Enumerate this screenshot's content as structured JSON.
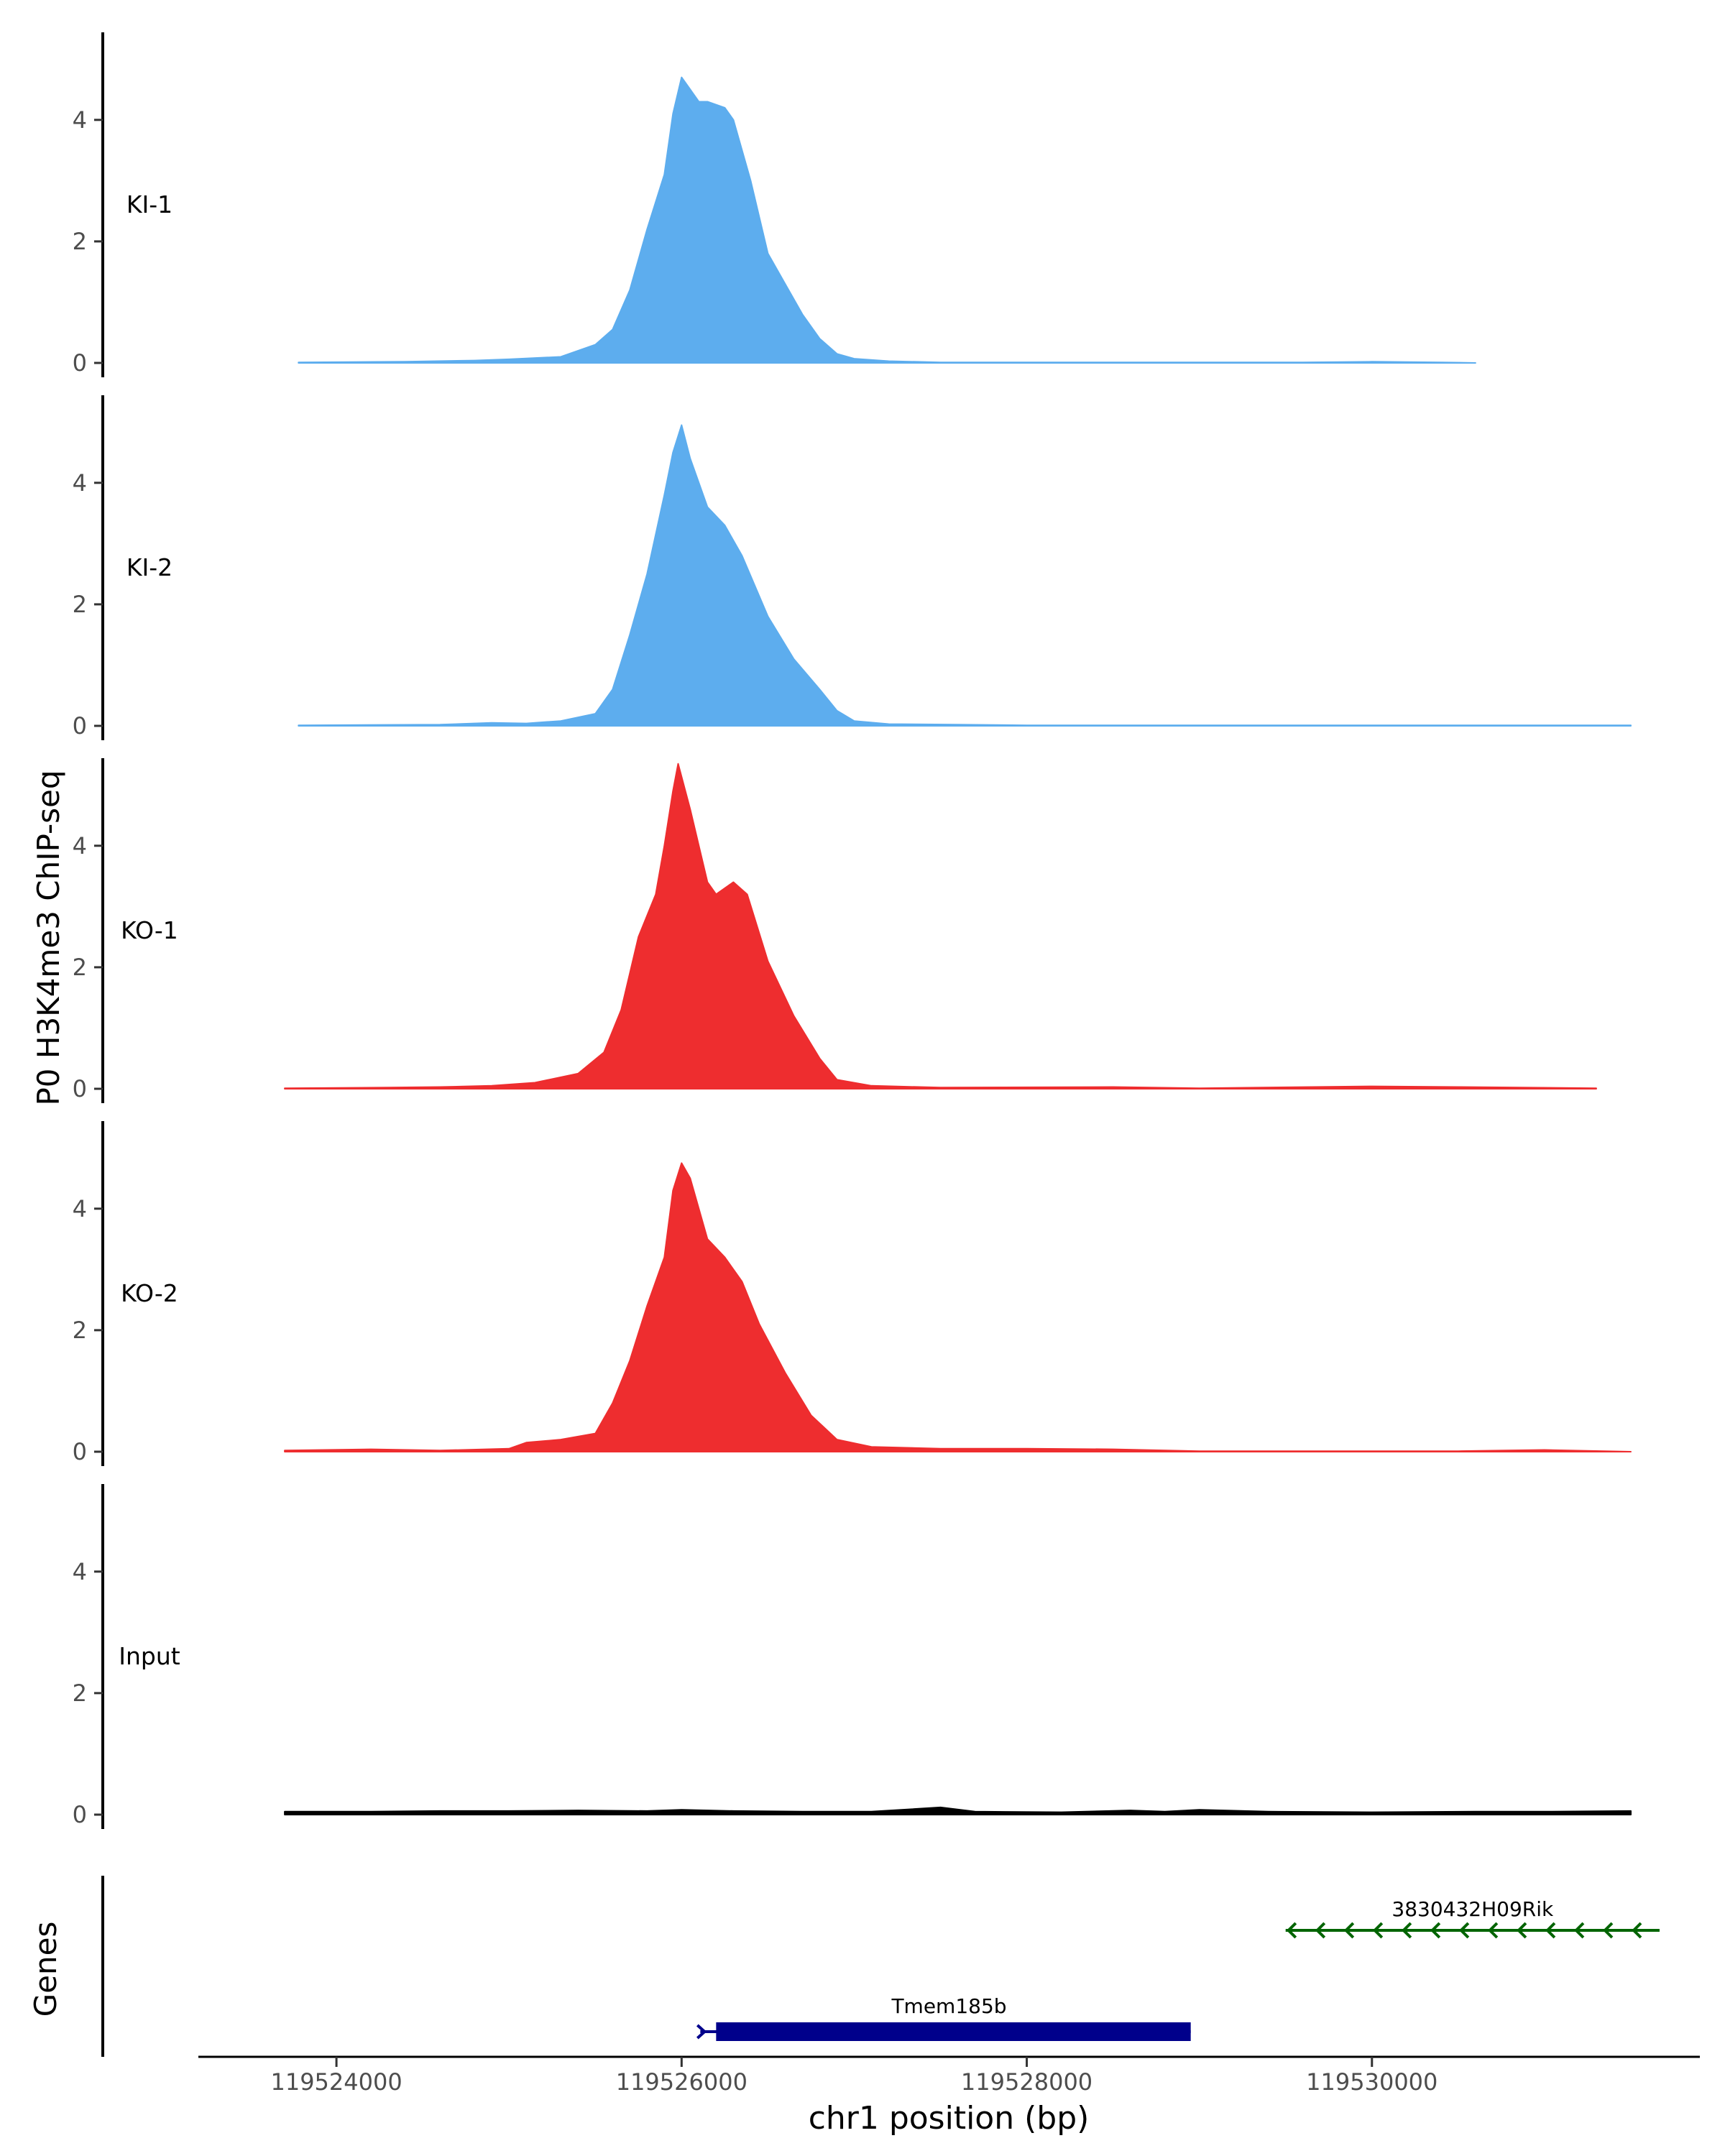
{
  "chart_data": {
    "type": "area",
    "title": "",
    "ylabel": "P0 H3K4me3 ChIP-seq",
    "xlabel": "chr1 position (bp)",
    "xlim": [
      119523200,
      119531900
    ],
    "ylim": [
      0,
      5.5
    ],
    "x_ticks": [
      119524000,
      119526000,
      119528000,
      119530000
    ],
    "x_tick_labels": [
      "119524000",
      "119526000",
      "119528000",
      "119530000"
    ],
    "y_ticks": [
      0,
      2,
      4
    ],
    "y_tick_labels": [
      "0",
      "2",
      "4"
    ],
    "colors": {
      "KI": "#5DADEE",
      "KO": "#EE2D2F",
      "Input": "#000000",
      "gene_plus": "#00008B",
      "gene_minus": "#006400",
      "axis": "#000000",
      "tick_text": "#4D4D4D"
    },
    "series": [
      {
        "name": "KI-1",
        "color": "#5DADEE",
        "points": [
          [
            119523780,
            0.01
          ],
          [
            119524400,
            0.02
          ],
          [
            119524800,
            0.04
          ],
          [
            119525000,
            0.06
          ],
          [
            119525300,
            0.1
          ],
          [
            119525500,
            0.3
          ],
          [
            119525600,
            0.55
          ],
          [
            119525700,
            1.2
          ],
          [
            119525800,
            2.2
          ],
          [
            119525900,
            3.1
          ],
          [
            119525950,
            4.1
          ],
          [
            119526000,
            4.7
          ],
          [
            119526050,
            4.5
          ],
          [
            119526100,
            4.3
          ],
          [
            119526150,
            4.3
          ],
          [
            119526250,
            4.2
          ],
          [
            119526300,
            4.0
          ],
          [
            119526400,
            3.0
          ],
          [
            119526500,
            1.8
          ],
          [
            119526600,
            1.3
          ],
          [
            119526700,
            0.8
          ],
          [
            119526800,
            0.4
          ],
          [
            119526900,
            0.15
          ],
          [
            119527000,
            0.07
          ],
          [
            119527200,
            0.03
          ],
          [
            119527500,
            0.01
          ],
          [
            119529600,
            0.01
          ],
          [
            119530000,
            0.02
          ],
          [
            119530400,
            0.01
          ],
          [
            119530600,
            0.0
          ]
        ]
      },
      {
        "name": "KI-2",
        "color": "#5DADEE",
        "points": [
          [
            119523780,
            0.01
          ],
          [
            119524600,
            0.02
          ],
          [
            119524900,
            0.05
          ],
          [
            119525100,
            0.04
          ],
          [
            119525300,
            0.08
          ],
          [
            119525500,
            0.2
          ],
          [
            119525600,
            0.6
          ],
          [
            119525700,
            1.5
          ],
          [
            119525800,
            2.5
          ],
          [
            119525900,
            3.8
          ],
          [
            119525950,
            4.5
          ],
          [
            119526000,
            4.95
          ],
          [
            119526050,
            4.4
          ],
          [
            119526150,
            3.6
          ],
          [
            119526250,
            3.3
          ],
          [
            119526350,
            2.8
          ],
          [
            119526500,
            1.8
          ],
          [
            119526650,
            1.1
          ],
          [
            119526800,
            0.6
          ],
          [
            119526900,
            0.25
          ],
          [
            119527000,
            0.08
          ],
          [
            119527200,
            0.03
          ],
          [
            119527600,
            0.02
          ],
          [
            119528000,
            0.01
          ],
          [
            119531500,
            0.01
          ]
        ]
      },
      {
        "name": "KO-1",
        "color": "#EE2D2F",
        "points": [
          [
            119523700,
            0.01
          ],
          [
            119524300,
            0.02
          ],
          [
            119524600,
            0.03
          ],
          [
            119524900,
            0.05
          ],
          [
            119525150,
            0.1
          ],
          [
            119525400,
            0.25
          ],
          [
            119525550,
            0.6
          ],
          [
            119525650,
            1.3
          ],
          [
            119525750,
            2.5
          ],
          [
            119525850,
            3.2
          ],
          [
            119525900,
            4.0
          ],
          [
            119525950,
            4.9
          ],
          [
            119525980,
            5.35
          ],
          [
            119526050,
            4.6
          ],
          [
            119526150,
            3.4
          ],
          [
            119526200,
            3.2
          ],
          [
            119526300,
            3.4
          ],
          [
            119526380,
            3.2
          ],
          [
            119526500,
            2.1
          ],
          [
            119526650,
            1.2
          ],
          [
            119526800,
            0.5
          ],
          [
            119526900,
            0.15
          ],
          [
            119527100,
            0.05
          ],
          [
            119527500,
            0.02
          ],
          [
            119528500,
            0.03
          ],
          [
            119529000,
            0.01
          ],
          [
            119530000,
            0.04
          ],
          [
            119530500,
            0.03
          ],
          [
            119531300,
            0.01
          ]
        ]
      },
      {
        "name": "KO-2",
        "color": "#EE2D2F",
        "points": [
          [
            119523700,
            0.02
          ],
          [
            119524200,
            0.04
          ],
          [
            119524600,
            0.02
          ],
          [
            119525000,
            0.05
          ],
          [
            119525100,
            0.15
          ],
          [
            119525300,
            0.2
          ],
          [
            119525500,
            0.3
          ],
          [
            119525600,
            0.8
          ],
          [
            119525700,
            1.5
          ],
          [
            119525800,
            2.4
          ],
          [
            119525900,
            3.2
          ],
          [
            119525950,
            4.3
          ],
          [
            119526000,
            4.75
          ],
          [
            119526050,
            4.5
          ],
          [
            119526150,
            3.5
          ],
          [
            119526250,
            3.2
          ],
          [
            119526350,
            2.8
          ],
          [
            119526450,
            2.1
          ],
          [
            119526600,
            1.3
          ],
          [
            119526750,
            0.6
          ],
          [
            119526900,
            0.2
          ],
          [
            119527100,
            0.08
          ],
          [
            119527500,
            0.05
          ],
          [
            119528000,
            0.05
          ],
          [
            119528500,
            0.04
          ],
          [
            119529000,
            0.01
          ],
          [
            119530500,
            0.01
          ],
          [
            119531000,
            0.03
          ],
          [
            119531500,
            0.0
          ]
        ]
      },
      {
        "name": "Input",
        "color": "#000000",
        "points": [
          [
            119523700,
            0.05
          ],
          [
            119524200,
            0.05
          ],
          [
            119524600,
            0.06
          ],
          [
            119525000,
            0.06
          ],
          [
            119525400,
            0.07
          ],
          [
            119525800,
            0.06
          ],
          [
            119526000,
            0.08
          ],
          [
            119526300,
            0.06
          ],
          [
            119526700,
            0.05
          ],
          [
            119527100,
            0.05
          ],
          [
            119527500,
            0.12
          ],
          [
            119527700,
            0.05
          ],
          [
            119528200,
            0.04
          ],
          [
            119528600,
            0.07
          ],
          [
            119528800,
            0.05
          ],
          [
            119529000,
            0.08
          ],
          [
            119529400,
            0.05
          ],
          [
            119530000,
            0.04
          ],
          [
            119530600,
            0.05
          ],
          [
            119531000,
            0.05
          ],
          [
            119531500,
            0.06
          ]
        ]
      }
    ],
    "genes_track": {
      "ylabel": "Genes",
      "genes": [
        {
          "name": "Tmem185b",
          "strand": "+",
          "start": 119526150,
          "end": 119528950,
          "thick_start": 119526200,
          "thick_end": 119528950,
          "color": "#00008B"
        },
        {
          "name": "3830432H09Rik",
          "strand": "-",
          "start": 119529500,
          "end": 119531500,
          "color": "#006400"
        }
      ]
    }
  }
}
